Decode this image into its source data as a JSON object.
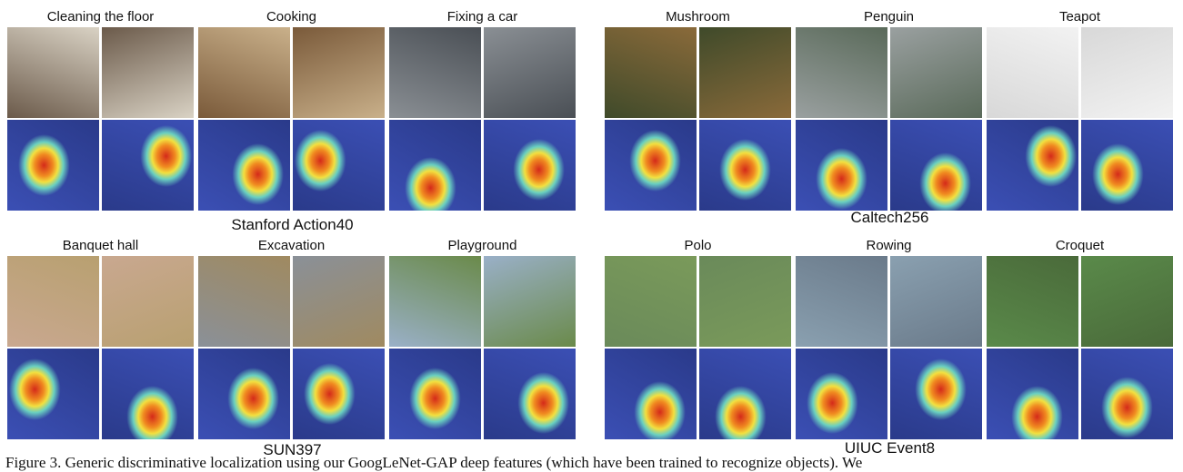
{
  "panels": [
    {
      "dataset": "Stanford Action40",
      "groups": [
        {
          "label": "Cleaning the floor"
        },
        {
          "label": "Cooking"
        },
        {
          "label": "Fixing a car"
        }
      ]
    },
    {
      "dataset": "Caltech256",
      "groups": [
        {
          "label": "Mushroom"
        },
        {
          "label": "Penguin"
        },
        {
          "label": "Teapot"
        }
      ]
    },
    {
      "dataset": "SUN397",
      "groups": [
        {
          "label": "Banquet hall"
        },
        {
          "label": "Excavation"
        },
        {
          "label": "Playground"
        }
      ]
    },
    {
      "dataset": "UIUC Event8",
      "groups": [
        {
          "label": "Polo"
        },
        {
          "label": "Rowing"
        },
        {
          "label": "Croquet"
        }
      ]
    }
  ],
  "caption": "Figure 3. Generic discriminative localization using our GoogLeNet-GAP deep features (which have been trained to recognize objects). We"
}
